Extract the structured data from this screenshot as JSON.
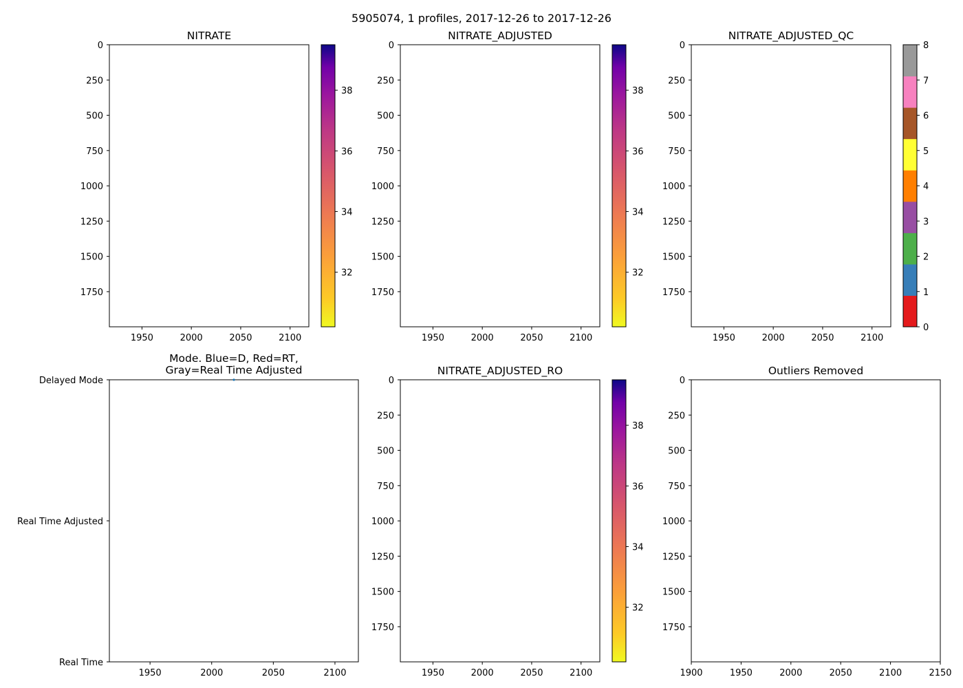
{
  "figure": {
    "suptitle": "5905074, 1 profiles, 2017-12-26 to 2017-12-26"
  },
  "chart_data": [
    {
      "id": "nitrate",
      "type": "heatmap",
      "title": "NITRATE",
      "xlim": [
        1917,
        2119
      ],
      "x_ticks": [
        1950,
        2000,
        2050,
        2100
      ],
      "ylim": [
        1999,
        0
      ],
      "y_ticks": [
        0,
        250,
        500,
        750,
        1000,
        1250,
        1500,
        1750
      ],
      "data": [],
      "colorbar": {
        "cmap": "plasma_r",
        "range": [
          30.2,
          39.5
        ],
        "ticks": [
          32,
          34,
          36,
          38
        ]
      }
    },
    {
      "id": "nitrate-adjusted",
      "type": "heatmap",
      "title": "NITRATE_ADJUSTED",
      "xlim": [
        1917,
        2119
      ],
      "x_ticks": [
        1950,
        2000,
        2050,
        2100
      ],
      "ylim": [
        1999,
        0
      ],
      "y_ticks": [
        0,
        250,
        500,
        750,
        1000,
        1250,
        1500,
        1750
      ],
      "data": [],
      "colorbar": {
        "cmap": "plasma_r",
        "range": [
          30.2,
          39.5
        ],
        "ticks": [
          32,
          34,
          36,
          38
        ]
      }
    },
    {
      "id": "nitrate-adjusted-qc",
      "type": "heatmap",
      "title": "NITRATE_ADJUSTED_QC",
      "xlim": [
        1917,
        2119
      ],
      "x_ticks": [
        1950,
        2000,
        2050,
        2100
      ],
      "ylim": [
        1999,
        0
      ],
      "y_ticks": [
        0,
        250,
        500,
        750,
        1000,
        1250,
        1500,
        1750
      ],
      "data": [],
      "colorbar": {
        "type": "discrete",
        "range": [
          0,
          8
        ],
        "ticks": [
          0,
          1,
          2,
          3,
          4,
          5,
          6,
          7,
          8
        ],
        "colors": [
          "#e41a1c",
          "#377eb8",
          "#4daf4a",
          "#984ea3",
          "#ff7f00",
          "#ffff33",
          "#a65628",
          "#f781bf",
          "#999999"
        ]
      }
    },
    {
      "id": "mode",
      "type": "scatter",
      "title_lines": [
        "Mode. Blue=D, Red=RT,",
        "Gray=Real Time Adjusted"
      ],
      "xlim": [
        1917,
        2119
      ],
      "x_ticks": [
        1950,
        2000,
        2050,
        2100
      ],
      "ylim": [
        0,
        2
      ],
      "y_ticks": [
        0,
        1,
        2
      ],
      "y_tick_labels": [
        "Real Time",
        "Real Time Adjusted",
        "Delayed Mode"
      ],
      "points": [
        {
          "x": 2018,
          "y": 2.0,
          "color": "#1f77b4"
        }
      ]
    },
    {
      "id": "nitrate-adjusted-ro",
      "type": "heatmap",
      "title": "NITRATE_ADJUSTED_RO",
      "xlim": [
        1917,
        2119
      ],
      "x_ticks": [
        1950,
        2000,
        2050,
        2100
      ],
      "ylim": [
        1999,
        0
      ],
      "y_ticks": [
        0,
        250,
        500,
        750,
        1000,
        1250,
        1500,
        1750
      ],
      "data": [],
      "colorbar": {
        "cmap": "plasma_r",
        "range": [
          30.2,
          39.5
        ],
        "ticks": [
          32,
          34,
          36,
          38
        ]
      }
    },
    {
      "id": "outliers-removed",
      "type": "heatmap",
      "title": "Outliers Removed",
      "xlim": [
        1900,
        2150
      ],
      "x_ticks": [
        1900,
        1950,
        2000,
        2050,
        2100,
        2150
      ],
      "ylim": [
        1999,
        0
      ],
      "y_ticks": [
        0,
        250,
        500,
        750,
        1000,
        1250,
        1500,
        1750
      ],
      "data": []
    }
  ]
}
